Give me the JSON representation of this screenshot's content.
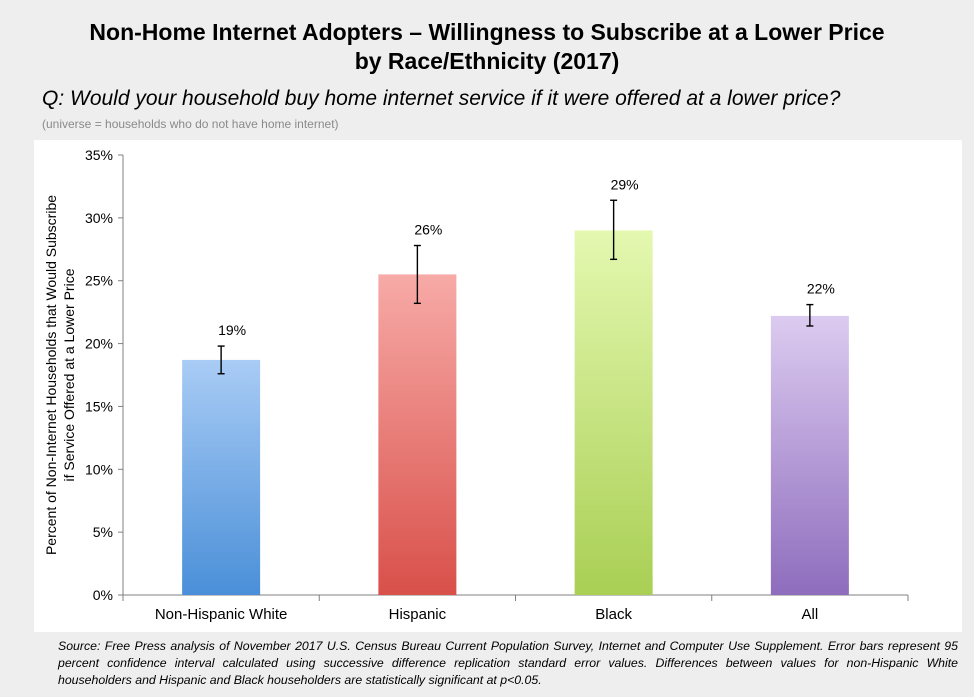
{
  "title_line1": "Non-Home Internet Adopters – Willingness to Subscribe at a Lower Price",
  "title_line2": "by Race/Ethnicity (2017)",
  "question": "Q: Would your household buy home internet service if it were offered at a lower price?",
  "universe": "(universe = households who do not have home internet)",
  "source": "Source: Free Press analysis of November 2017 U.S. Census Bureau Current Population Survey, Internet and Computer Use Supplement. Error bars represent 95 percent confidence interval calculated using successive difference replication standard error values. Differences between values for non-Hispanic White householders and Hispanic and Black householders are statistically significant at p<0.05.",
  "chart_data": {
    "type": "bar",
    "categories": [
      "Non-Hispanic White",
      "Hispanic",
      "Black",
      "All"
    ],
    "values": [
      18.7,
      25.5,
      29.0,
      22.2
    ],
    "data_labels": [
      "19%",
      "26%",
      "29%",
      "22%"
    ],
    "error_low": [
      17.6,
      23.2,
      26.7,
      21.4
    ],
    "error_high": [
      19.8,
      27.8,
      31.4,
      23.1
    ],
    "ylabel_line1": "Percent of Non-Internet Households that Would Subscribe",
    "ylabel_line2": "if Service Offered at a Lower Price",
    "ylim": [
      0,
      35
    ],
    "yticks": [
      0,
      5,
      10,
      15,
      20,
      25,
      30,
      35
    ],
    "ytick_labels": [
      "0%",
      "5%",
      "10%",
      "15%",
      "20%",
      "25%",
      "30%",
      "35%"
    ],
    "grid": false,
    "bar_colors": [
      {
        "top": "#a9ccf5",
        "bottom": "#4a8fd8"
      },
      {
        "top": "#f7aaa7",
        "bottom": "#d9504a"
      },
      {
        "top": "#e4f8b0",
        "bottom": "#a9cf54"
      },
      {
        "top": "#dccbf0",
        "bottom": "#8e6dbd"
      }
    ]
  }
}
